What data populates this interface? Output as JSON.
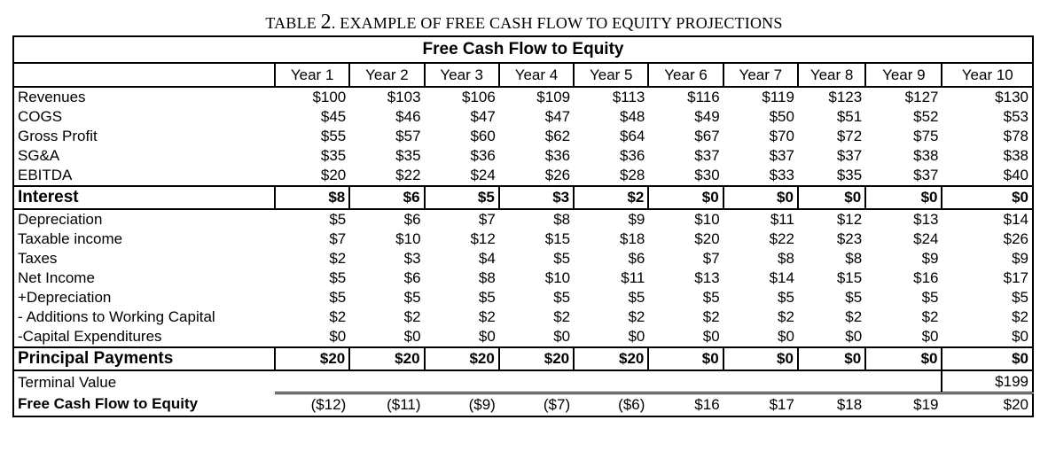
{
  "caption": {
    "prefix": "TABLE ",
    "number": "2",
    "text": ". EXAMPLE OF FREE CASH FLOW TO EQUITY PROJECTIONS"
  },
  "table": {
    "title": "Free Cash Flow to Equity",
    "header_label": "",
    "years": [
      "Year 1",
      "Year 2",
      "Year 3",
      "Year 4",
      "Year 5",
      "Year 6",
      "Year 7",
      "Year 8",
      "Year 9",
      "Year 10"
    ],
    "rows": [
      {
        "label": "Revenues",
        "values": [
          "$100",
          "$103",
          "$106",
          "$109",
          "$113",
          "$116",
          "$119",
          "$123",
          "$127",
          "$130"
        ]
      },
      {
        "label": "COGS",
        "values": [
          "$45",
          "$46",
          "$47",
          "$47",
          "$48",
          "$49",
          "$50",
          "$51",
          "$52",
          "$53"
        ]
      },
      {
        "label": "Gross Profit",
        "values": [
          "$55",
          "$57",
          "$60",
          "$62",
          "$64",
          "$67",
          "$70",
          "$72",
          "$75",
          "$78"
        ]
      },
      {
        "label": "SG&A",
        "values": [
          "$35",
          "$35",
          "$36",
          "$36",
          "$36",
          "$37",
          "$37",
          "$37",
          "$38",
          "$38"
        ]
      },
      {
        "label": "EBITDA",
        "values": [
          "$20",
          "$22",
          "$24",
          "$26",
          "$28",
          "$30",
          "$33",
          "$35",
          "$37",
          "$40"
        ]
      },
      {
        "label": "Interest",
        "values": [
          "$8",
          "$6",
          "$5",
          "$3",
          "$2",
          "$0",
          "$0",
          "$0",
          "$0",
          "$0"
        ],
        "style": "boxed"
      },
      {
        "label": "Depreciation",
        "values": [
          "$5",
          "$6",
          "$7",
          "$8",
          "$9",
          "$10",
          "$11",
          "$12",
          "$13",
          "$14"
        ]
      },
      {
        "label": "Taxable income",
        "values": [
          "$7",
          "$10",
          "$12",
          "$15",
          "$18",
          "$20",
          "$22",
          "$23",
          "$24",
          "$26"
        ]
      },
      {
        "label": "Taxes",
        "values": [
          "$2",
          "$3",
          "$4",
          "$5",
          "$6",
          "$7",
          "$8",
          "$8",
          "$9",
          "$9"
        ]
      },
      {
        "label": "Net Income",
        "values": [
          "$5",
          "$6",
          "$8",
          "$10",
          "$11",
          "$13",
          "$14",
          "$15",
          "$16",
          "$17"
        ]
      },
      {
        "label": "+Depreciation",
        "values": [
          "$5",
          "$5",
          "$5",
          "$5",
          "$5",
          "$5",
          "$5",
          "$5",
          "$5",
          "$5"
        ]
      },
      {
        "label": "- Additions to Working Capital",
        "values": [
          "$2",
          "$2",
          "$2",
          "$2",
          "$2",
          "$2",
          "$2",
          "$2",
          "$2",
          "$2"
        ]
      },
      {
        "label": "-Capital Expenditures",
        "values": [
          "$0",
          "$0",
          "$0",
          "$0",
          "$0",
          "$0",
          "$0",
          "$0",
          "$0",
          "$0"
        ]
      },
      {
        "label": "Principal Payments",
        "values": [
          "$20",
          "$20",
          "$20",
          "$20",
          "$20",
          "$0",
          "$0",
          "$0",
          "$0",
          "$0"
        ],
        "style": "boxed"
      }
    ],
    "terminal": {
      "label": "Terminal Value",
      "value": "$199"
    },
    "fcfe": {
      "label": "Free Cash Flow to Equity",
      "values": [
        "($12)",
        "($11)",
        "($9)",
        "($7)",
        "($6)",
        "$16",
        "$17",
        "$18",
        "$19",
        "$20"
      ]
    }
  }
}
